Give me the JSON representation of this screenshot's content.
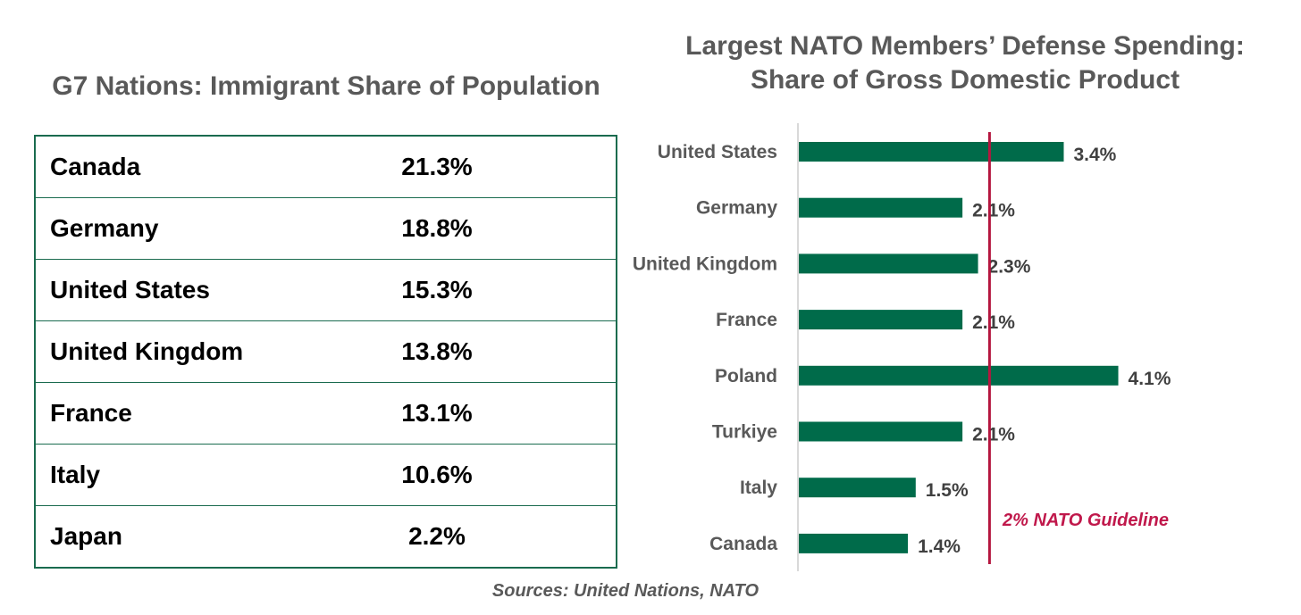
{
  "table": {
    "title": "G7 Nations: Immigrant Share of Population",
    "rows": [
      {
        "country": "Canada",
        "value": "21.3%"
      },
      {
        "country": "Germany",
        "value": "18.8%"
      },
      {
        "country": "United States",
        "value": "15.3%"
      },
      {
        "country": "United Kingdom",
        "value": "13.8%"
      },
      {
        "country": "France",
        "value": "13.1%"
      },
      {
        "country": "Italy",
        "value": "10.6%"
      },
      {
        "country": "Japan",
        "value": "2.2%"
      }
    ]
  },
  "chart_data": {
    "type": "bar",
    "orientation": "horizontal",
    "title": [
      "Largest NATO Members’ Defense Spending:",
      "Share of Gross Domestic Product"
    ],
    "categories": [
      "United States",
      "Germany",
      "United Kingdom",
      "France",
      "Poland",
      "Turkiye",
      "Italy",
      "Canada"
    ],
    "values": [
      3.4,
      2.1,
      2.3,
      2.1,
      4.1,
      2.1,
      1.5,
      1.4
    ],
    "value_labels": [
      "3.4%",
      "2.1%",
      "2.3%",
      "2.1%",
      "4.1%",
      "2.1%",
      "1.5%",
      "1.4%"
    ],
    "xlim": [
      0,
      4.1
    ],
    "reference_line": {
      "value": 2.0,
      "label": "2% NATO Guideline"
    },
    "colors": {
      "bar": "#006b4a",
      "reference": "#b5163f"
    }
  },
  "footer": {
    "sources": "Sources: United Nations, NATO"
  }
}
